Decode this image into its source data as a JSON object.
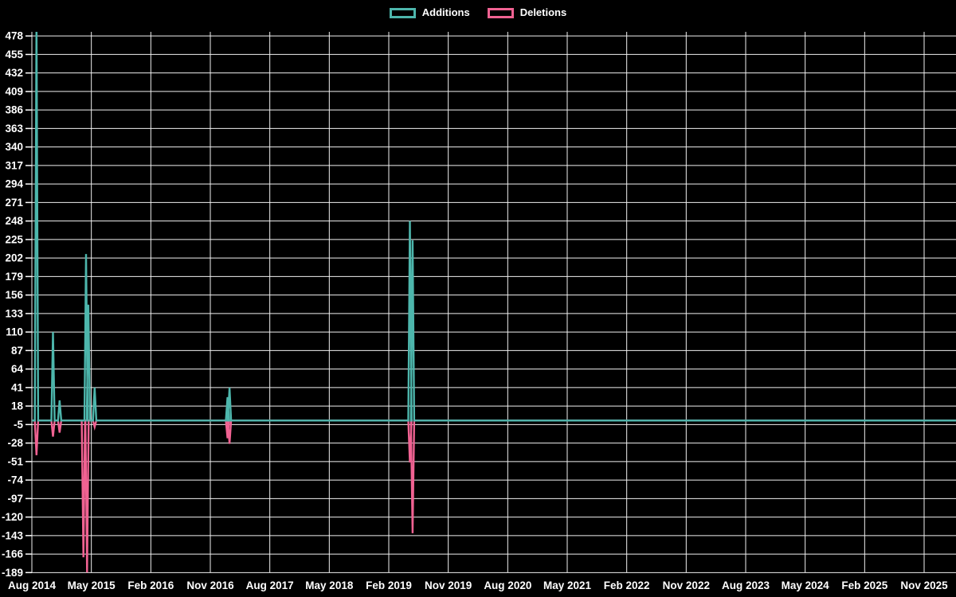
{
  "legend": {
    "additions_label": "Additions",
    "deletions_label": "Deletions"
  },
  "colors": {
    "background": "#000000",
    "additions": "#4db6ac",
    "deletions": "#f06292",
    "grid": "#f0f0f0",
    "axis_text": "#ffffff"
  },
  "chart_data": {
    "type": "line",
    "title": "",
    "xlabel": "",
    "ylabel": "",
    "grid": true,
    "legend_position": "top-center",
    "ylim": [
      -189,
      478
    ],
    "y_tick_step": 23,
    "y_ticks": [
      478,
      455,
      432,
      409,
      386,
      363,
      340,
      317,
      294,
      271,
      248,
      225,
      202,
      179,
      156,
      133,
      110,
      87,
      64,
      41,
      18,
      -5,
      -28,
      -51,
      -74,
      -97,
      -120,
      -143,
      -166,
      -189
    ],
    "x_tick_labels": [
      "Aug 2014",
      "May 2015",
      "Feb 2016",
      "Nov 2016",
      "Aug 2017",
      "May 2018",
      "Feb 2019",
      "Nov 2019",
      "Aug 2020",
      "May 2021",
      "Feb 2022",
      "Nov 2022",
      "Aug 2023",
      "May 2024",
      "Feb 2025",
      "Nov 2025"
    ],
    "x_tick_interval_months": 9,
    "months_span": 135,
    "series": [
      {
        "name": "Additions",
        "color": "#4db6ac",
        "baseline_value": 0
      },
      {
        "name": "Deletions",
        "color": "#f06292",
        "baseline_value": 0
      }
    ],
    "spikes": [
      {
        "month_label": "Sep 2014",
        "month_offset": 0.7,
        "additions": 500,
        "deletions": -43,
        "additions_clipped_at_top": true
      },
      {
        "month_label": "Nov 2014",
        "month_offset": 3.2,
        "additions": 110,
        "deletions": -20
      },
      {
        "month_label": "Dec 2014",
        "month_offset": 4.2,
        "additions": 25,
        "deletions": -15
      },
      {
        "month_label": "Apr 2015",
        "month_offset": 7.8,
        "additions": 0,
        "deletions": -170
      },
      {
        "month_label": "Apr 2015",
        "month_offset": 8.2,
        "additions": 207,
        "deletions": 0
      },
      {
        "month_label": "Apr 2015",
        "month_offset": 8.35,
        "additions": 0,
        "deletions": -189
      },
      {
        "month_label": "Apr 2015",
        "month_offset": 8.55,
        "additions": 144,
        "deletions": 0
      },
      {
        "month_label": "May 2015",
        "month_offset": 9.5,
        "additions": 41,
        "deletions": -8
      },
      {
        "month_label": "Jan 2017",
        "month_offset": 29.6,
        "additions": 29,
        "deletions": -22
      },
      {
        "month_label": "Jan 2017",
        "month_offset": 29.9,
        "additions": 41,
        "deletions": -29
      },
      {
        "month_label": "May 2019",
        "month_offset": 57.2,
        "additions": 248,
        "deletions": -52
      },
      {
        "month_label": "May 2019",
        "month_offset": 57.6,
        "additions": 224,
        "deletions": -140
      }
    ]
  }
}
